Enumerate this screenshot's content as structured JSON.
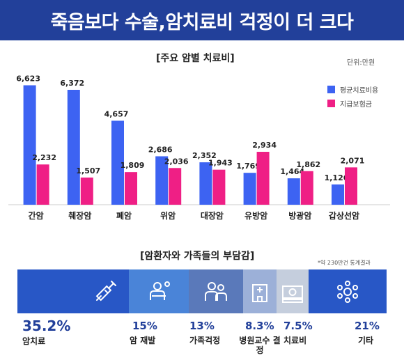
{
  "banner_title": "죽음보다 수술,암치료비 걱정이 더 크다",
  "chart_title": "[주요 암별 치료비]",
  "unit_label": "단위:만원",
  "chart_data": {
    "type": "bar",
    "title": "[주요 암별 치료비]",
    "categories": [
      "간암",
      "췌장암",
      "폐암",
      "위암",
      "대장암",
      "유방암",
      "방광암",
      "갑상선암"
    ],
    "series": [
      {
        "name": "평균치료비용",
        "color": "#3d63f2",
        "values": [
          6623,
          6372,
          4657,
          2686,
          2352,
          1769,
          1464,
          1126
        ]
      },
      {
        "name": "지급보험금",
        "color": "#ef1f85",
        "values": [
          2232,
          1507,
          1809,
          2036,
          1943,
          2934,
          1862,
          2071
        ]
      }
    ],
    "ylim": [
      0,
      7000
    ],
    "grid": false,
    "legend": "top-right"
  },
  "burden": {
    "title": "[암환자와 가족들의 부담감]",
    "note": "*약 230만건 통계결과",
    "items": [
      {
        "percent": "35.2%",
        "label": "암치료",
        "value": 35.2,
        "color": "#2857c6",
        "icon": "syringe-icon"
      },
      {
        "percent": "15%",
        "label": "암 재발",
        "value": 15,
        "color": "#4a84d8",
        "icon": "patient-icon"
      },
      {
        "percent": "13%",
        "label": "가족걱정",
        "value": 13,
        "color": "#5a79ba",
        "icon": "family-icon"
      },
      {
        "percent": "8.3%",
        "label": "병원교수 결정",
        "value": 8.3,
        "color": "#9cb0d8",
        "icon": "hospital-icon"
      },
      {
        "percent": "7.5%",
        "label": "치료비",
        "value": 7.5,
        "color": "#c5cedd",
        "icon": "money-icon"
      },
      {
        "percent": "21%",
        "label": "기타",
        "value": 21,
        "color": "#2857c6",
        "icon": "cells-icon"
      }
    ]
  }
}
